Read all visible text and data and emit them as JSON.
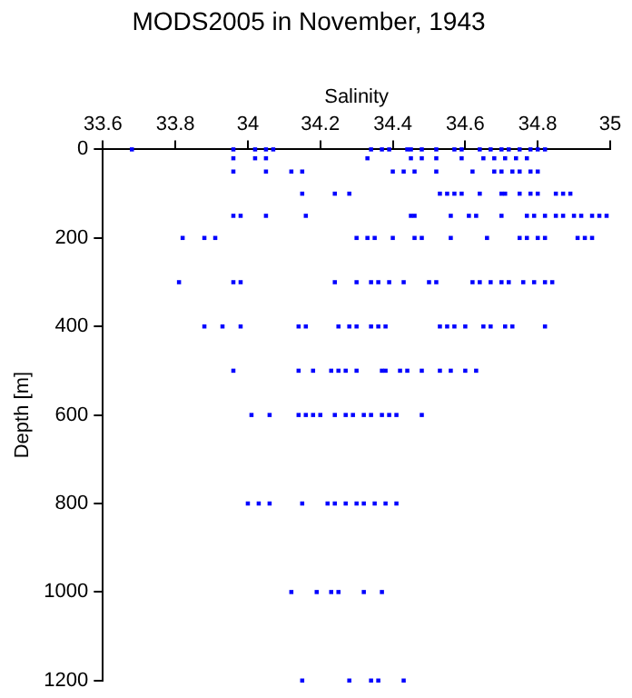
{
  "chart_data": {
    "type": "scatter",
    "title": "MODS2005 in November, 1943",
    "xlabel": "Salinity",
    "ylabel": "Depth [m]",
    "xlim": [
      33.6,
      35
    ],
    "xticks": [
      33.6,
      33.8,
      34,
      34.2,
      34.4,
      34.6,
      34.8,
      35
    ],
    "ylim": [
      1200,
      0
    ],
    "yticks": [
      0,
      200,
      400,
      600,
      800,
      1000,
      1200
    ],
    "grid": false,
    "legend": false,
    "marker": "square",
    "series": [
      {
        "color": "#0000ff",
        "x": [
          33.68,
          33.96,
          34.02,
          34.05,
          34.07,
          34.34,
          34.37,
          34.39,
          34.44,
          34.45,
          34.48,
          34.52,
          34.57,
          34.59,
          34.64,
          34.67,
          34.7,
          34.72,
          34.75,
          34.78,
          34.8,
          34.82
        ],
        "values": [
          0,
          0,
          0,
          0,
          0,
          0,
          0,
          0,
          0,
          0,
          0,
          0,
          0,
          0,
          0,
          0,
          0,
          0,
          0,
          0,
          0,
          0
        ]
      },
      {
        "color": "#0000ff",
        "x": [
          33.96,
          34.02,
          34.05,
          34.33,
          34.45,
          34.48,
          34.52,
          34.59,
          34.65,
          34.68,
          34.71,
          34.74,
          34.77
        ],
        "values": [
          20,
          20,
          20,
          20,
          20,
          20,
          20,
          20,
          20,
          20,
          20,
          20,
          20
        ]
      },
      {
        "color": "#0000ff",
        "x": [
          33.96,
          34.05,
          34.12,
          34.15,
          34.4,
          34.43,
          34.46,
          34.52,
          34.62,
          34.68,
          34.7,
          34.73,
          34.75,
          34.78,
          34.8
        ],
        "values": [
          50,
          50,
          50,
          50,
          50,
          50,
          50,
          50,
          50,
          50,
          50,
          50,
          50,
          50,
          50
        ]
      },
      {
        "color": "#0000ff",
        "x": [
          34.15,
          34.24,
          34.28,
          34.53,
          34.55,
          34.57,
          34.59,
          34.64,
          34.7,
          34.71,
          34.75,
          34.78,
          34.8,
          34.85,
          34.87,
          34.89
        ],
        "values": [
          100,
          100,
          100,
          100,
          100,
          100,
          100,
          100,
          100,
          100,
          100,
          100,
          100,
          100,
          100,
          100
        ]
      },
      {
        "color": "#0000ff",
        "x": [
          33.96,
          33.98,
          34.05,
          34.16,
          34.45,
          34.46,
          34.56,
          34.61,
          34.63,
          34.7,
          34.77,
          34.79,
          34.82,
          34.85,
          34.87,
          34.9,
          34.92,
          34.95,
          34.97,
          34.99
        ],
        "values": [
          150,
          150,
          150,
          150,
          150,
          150,
          150,
          150,
          150,
          150,
          150,
          150,
          150,
          150,
          150,
          150,
          150,
          150,
          150,
          150
        ]
      },
      {
        "color": "#0000ff",
        "x": [
          33.82,
          33.88,
          33.91,
          34.3,
          34.33,
          34.35,
          34.4,
          34.46,
          34.48,
          34.56,
          34.66,
          34.75,
          34.77,
          34.8,
          34.82,
          34.91,
          34.93,
          34.95
        ],
        "values": [
          200,
          200,
          200,
          200,
          200,
          200,
          200,
          200,
          200,
          200,
          200,
          200,
          200,
          200,
          200,
          200,
          200,
          200
        ]
      },
      {
        "color": "#0000ff",
        "x": [
          33.81,
          33.96,
          33.98,
          34.24,
          34.3,
          34.34,
          34.36,
          34.39,
          34.43,
          34.5,
          34.52,
          34.62,
          34.64,
          34.67,
          34.7,
          34.72,
          34.76,
          34.79,
          34.82,
          34.84
        ],
        "values": [
          300,
          300,
          300,
          300,
          300,
          300,
          300,
          300,
          300,
          300,
          300,
          300,
          300,
          300,
          300,
          300,
          300,
          300,
          300,
          300
        ]
      },
      {
        "color": "#0000ff",
        "x": [
          33.88,
          33.93,
          33.98,
          34.14,
          34.16,
          34.25,
          34.28,
          34.3,
          34.34,
          34.36,
          34.38,
          34.53,
          34.55,
          34.57,
          34.6,
          34.65,
          34.67,
          34.71,
          34.73,
          34.82
        ],
        "values": [
          400,
          400,
          400,
          400,
          400,
          400,
          400,
          400,
          400,
          400,
          400,
          400,
          400,
          400,
          400,
          400,
          400,
          400,
          400,
          400
        ]
      },
      {
        "color": "#0000ff",
        "x": [
          33.96,
          34.14,
          34.18,
          34.23,
          34.25,
          34.27,
          34.3,
          34.37,
          34.38,
          34.42,
          34.44,
          34.48,
          34.53,
          34.56,
          34.6,
          34.63
        ],
        "values": [
          500,
          500,
          500,
          500,
          500,
          500,
          500,
          500,
          500,
          500,
          500,
          500,
          500,
          500,
          500,
          500
        ]
      },
      {
        "color": "#0000ff",
        "x": [
          34.01,
          34.06,
          34.14,
          34.16,
          34.18,
          34.2,
          34.24,
          34.27,
          34.29,
          34.32,
          34.34,
          34.37,
          34.39,
          34.41,
          34.48
        ],
        "values": [
          600,
          600,
          600,
          600,
          600,
          600,
          600,
          600,
          600,
          600,
          600,
          600,
          600,
          600,
          600
        ]
      },
      {
        "color": "#0000ff",
        "x": [
          34.0,
          34.03,
          34.06,
          34.15,
          34.22,
          34.24,
          34.27,
          34.3,
          34.32,
          34.35,
          34.38,
          34.41
        ],
        "values": [
          800,
          800,
          800,
          800,
          800,
          800,
          800,
          800,
          800,
          800,
          800,
          800
        ]
      },
      {
        "color": "#0000ff",
        "x": [
          34.12,
          34.19,
          34.23,
          34.25,
          34.32,
          34.37
        ],
        "values": [
          1000,
          1000,
          1000,
          1000,
          1000,
          1000
        ]
      },
      {
        "color": "#0000ff",
        "x": [
          34.15,
          34.28,
          34.34,
          34.36,
          34.43
        ],
        "values": [
          1200,
          1200,
          1200,
          1200,
          1200
        ]
      }
    ]
  }
}
